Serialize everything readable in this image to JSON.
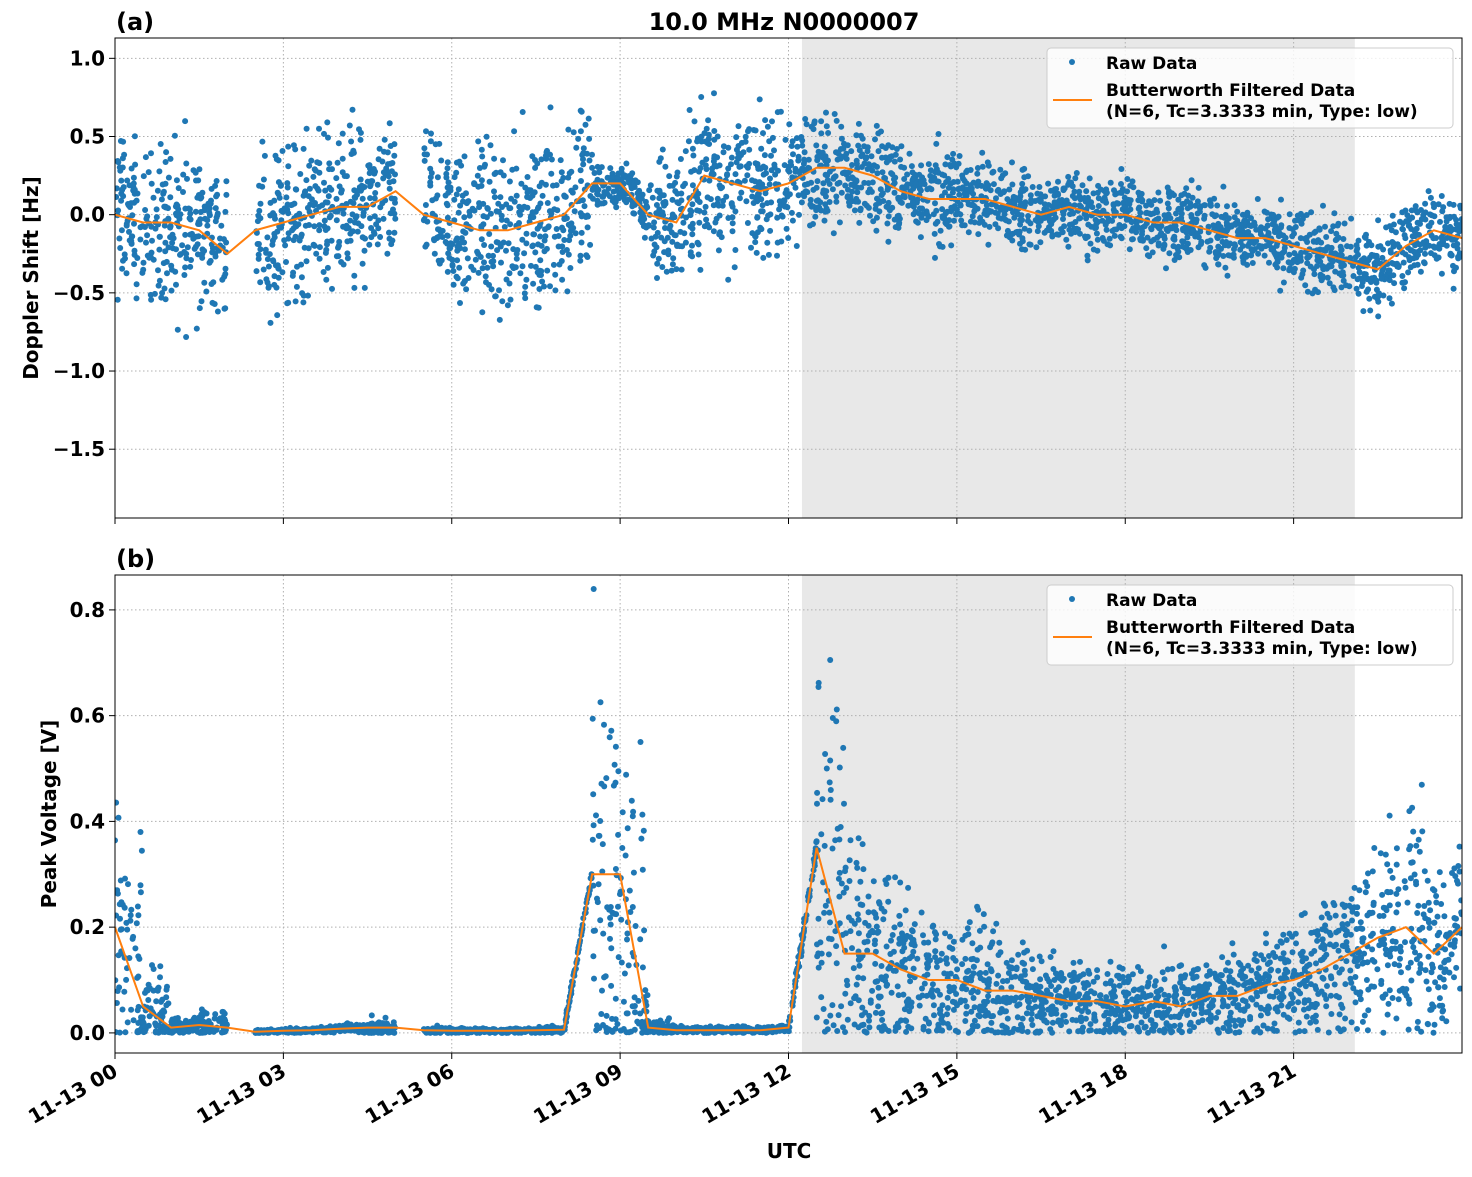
{
  "title": "10.0 MHz N0000007",
  "xlabel": "UTC",
  "x_tick_labels": [
    "11-13 00",
    "11-13 03",
    "11-13 06",
    "11-13 09",
    "11-13 12",
    "11-13 15",
    "11-13 18",
    "11-13 21"
  ],
  "x_tick_hours": [
    0,
    3,
    6,
    9,
    12,
    15,
    18,
    21
  ],
  "xlim_hours": [
    0,
    24
  ],
  "shaded_span_hours": [
    12.24,
    22.09
  ],
  "colors": {
    "raw": "#1f77b4",
    "filtered": "#ff7f0e",
    "shade": "#e8e8e8",
    "grid": "#b0b0b0"
  },
  "legend": {
    "raw": "Raw Data",
    "filtered_line1": "Butterworth Filtered Data",
    "filtered_line2": "(N=6, Tc=3.3333 min, Type: low)",
    "placement": "top-right"
  },
  "chart_data": [
    {
      "panel_label": "(a)",
      "type": "scatter+line",
      "ylabel": "Doppler Shift [Hz]",
      "ylim": [
        -1.94,
        1.13
      ],
      "y_ticks": [
        1.0,
        0.5,
        0.0,
        -0.5,
        -1.0,
        -1.5
      ],
      "y_tick_labels": [
        "1.0",
        "0.5",
        "0.0",
        "−0.5",
        "−1.0",
        "−1.5"
      ],
      "grid": true,
      "hours": [
        0,
        0.5,
        1,
        1.5,
        2,
        2.5,
        3,
        3.5,
        4,
        4.5,
        5,
        5.5,
        6,
        6.5,
        7,
        7.5,
        8,
        8.5,
        9,
        9.5,
        10,
        10.5,
        11,
        11.5,
        12,
        12.5,
        13,
        13.5,
        14,
        14.5,
        15,
        15.5,
        16,
        16.5,
        17,
        17.5,
        18,
        18.5,
        19,
        19.5,
        20,
        20.5,
        21,
        21.5,
        22,
        22.5,
        23,
        23.5,
        24
      ],
      "filtered": [
        0.0,
        -0.05,
        -0.05,
        -0.1,
        -0.25,
        -0.1,
        -0.05,
        0.0,
        0.05,
        0.05,
        0.15,
        0.0,
        -0.05,
        -0.1,
        -0.1,
        -0.05,
        0.0,
        0.2,
        0.2,
        0.0,
        -0.05,
        0.25,
        0.2,
        0.15,
        0.2,
        0.3,
        0.3,
        0.25,
        0.15,
        0.1,
        0.1,
        0.1,
        0.05,
        0.0,
        0.05,
        0.0,
        0.0,
        -0.05,
        -0.05,
        -0.1,
        -0.15,
        -0.15,
        -0.2,
        -0.25,
        -0.3,
        -0.35,
        -0.2,
        -0.1,
        -0.15
      ],
      "raw_spread": [
        0.3,
        0.3,
        0.35,
        0.3,
        null,
        0.3,
        0.3,
        0.3,
        0.3,
        0.25,
        null,
        0.3,
        0.35,
        0.35,
        0.35,
        0.35,
        0.3,
        0.1,
        0.1,
        0.25,
        0.3,
        0.3,
        0.3,
        0.25,
        0.25,
        0.2,
        0.2,
        0.2,
        0.15,
        0.2,
        0.15,
        0.15,
        0.15,
        0.15,
        0.15,
        0.15,
        0.15,
        0.15,
        0.15,
        0.15,
        0.12,
        0.15,
        0.15,
        0.15,
        0.15,
        0.15,
        0.15,
        0.15,
        0.15
      ]
    },
    {
      "panel_label": "(b)",
      "type": "scatter+line",
      "ylabel": "Peak Voltage [V]",
      "ylim": [
        -0.038,
        0.866
      ],
      "y_ticks": [
        0.8,
        0.6,
        0.4,
        0.2,
        0.0
      ],
      "y_tick_labels": [
        "0.8",
        "0.6",
        "0.4",
        "0.2",
        "0.0"
      ],
      "grid": true,
      "hours": [
        0,
        0.5,
        1,
        1.5,
        2,
        2.5,
        3,
        3.5,
        4,
        4.5,
        5,
        5.5,
        6,
        6.5,
        7,
        7.5,
        8,
        8.5,
        9,
        9.5,
        10,
        10.5,
        11,
        11.5,
        12,
        12.5,
        13,
        13.5,
        14,
        14.5,
        15,
        15.5,
        16,
        16.5,
        17,
        17.5,
        18,
        18.5,
        19,
        19.5,
        20,
        20.5,
        21,
        21.5,
        22,
        22.5,
        23,
        23.5,
        24
      ],
      "filtered": [
        0.2,
        0.05,
        0.01,
        0.015,
        0.01,
        0.002,
        0.004,
        0.005,
        0.008,
        0.01,
        0.01,
        0.005,
        0.004,
        0.004,
        0.004,
        0.005,
        0.006,
        0.3,
        0.3,
        0.01,
        0.005,
        0.005,
        0.005,
        0.005,
        0.01,
        0.35,
        0.15,
        0.15,
        0.12,
        0.1,
        0.1,
        0.08,
        0.08,
        0.07,
        0.06,
        0.06,
        0.05,
        0.06,
        0.05,
        0.07,
        0.07,
        0.09,
        0.1,
        0.12,
        0.15,
        0.18,
        0.2,
        0.15,
        0.2
      ],
      "raw_spread": [
        0.15,
        0.06,
        0.01,
        0.015,
        null,
        0.003,
        0.003,
        0.004,
        0.006,
        0.01,
        null,
        0.004,
        0.003,
        0.003,
        0.003,
        0.004,
        0.005,
        0.25,
        0.25,
        0.01,
        0.004,
        0.004,
        0.004,
        0.004,
        0.01,
        0.3,
        0.12,
        0.12,
        0.1,
        0.08,
        0.08,
        0.06,
        0.06,
        0.05,
        0.05,
        0.05,
        0.04,
        0.05,
        0.04,
        0.05,
        0.05,
        0.06,
        0.07,
        0.08,
        0.1,
        0.12,
        0.15,
        0.1,
        0.15
      ]
    }
  ]
}
